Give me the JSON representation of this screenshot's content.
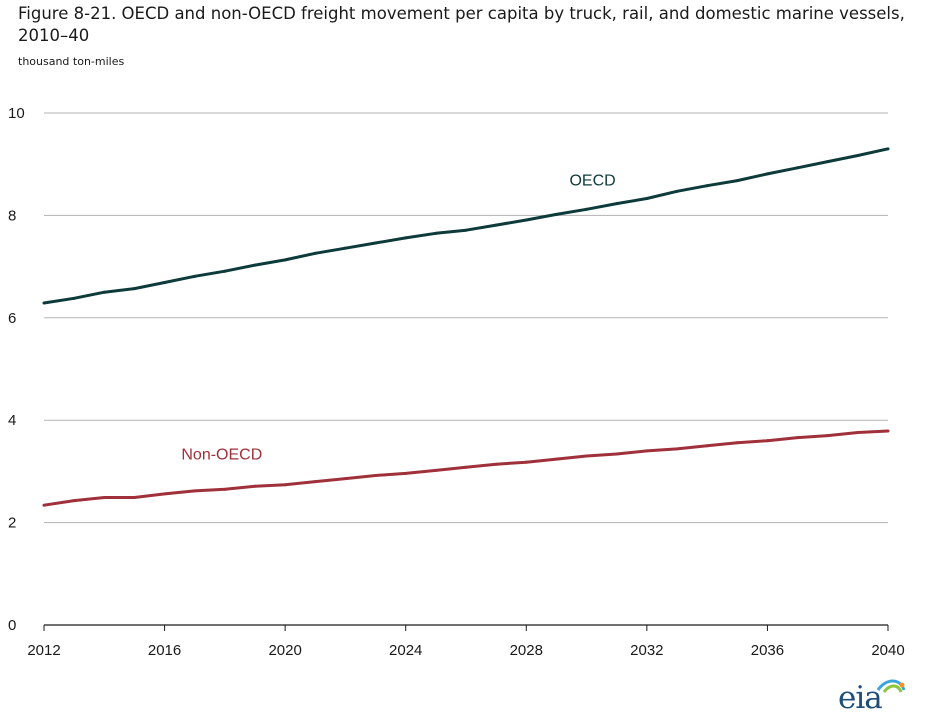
{
  "figure": {
    "title": "Figure 8-21. OECD and non-OECD freight movement per capita by truck, rail, and domestic marine vessels, 2010–40",
    "units": "thousand ton-miles"
  },
  "logo": {
    "text": "eia",
    "icon": "eia-logo"
  },
  "chart_data": {
    "type": "line",
    "title": "",
    "xlabel": "",
    "ylabel": "",
    "x": [
      2012,
      2013,
      2014,
      2015,
      2016,
      2017,
      2018,
      2019,
      2020,
      2021,
      2022,
      2023,
      2024,
      2025,
      2026,
      2027,
      2028,
      2029,
      2030,
      2031,
      2032,
      2033,
      2034,
      2035,
      2036,
      2037,
      2038,
      2039,
      2040
    ],
    "xlim": [
      2012,
      2040
    ],
    "ylim": [
      0,
      10
    ],
    "x_ticks": [
      "2012",
      "2016",
      "2020",
      "2024",
      "2028",
      "2032",
      "2036",
      "2040"
    ],
    "y_ticks": [
      "0",
      "2",
      "4",
      "6",
      "8",
      "10"
    ],
    "grid": "horizontal",
    "series": [
      {
        "name": "OECD",
        "color": "#0d3a3a",
        "values": [
          6.29,
          6.38,
          6.5,
          6.57,
          6.69,
          6.81,
          6.91,
          7.03,
          7.13,
          7.26,
          7.36,
          7.46,
          7.56,
          7.65,
          7.71,
          7.81,
          7.91,
          8.02,
          8.12,
          8.23,
          8.33,
          8.47,
          8.58,
          8.68,
          8.81,
          8.93,
          9.05,
          9.17,
          9.3
        ]
      },
      {
        "name": "Non-OECD",
        "color": "#a0303a",
        "values": [
          2.34,
          2.43,
          2.49,
          2.49,
          2.56,
          2.62,
          2.65,
          2.71,
          2.74,
          2.8,
          2.86,
          2.92,
          2.96,
          3.02,
          3.08,
          3.14,
          3.18,
          3.24,
          3.3,
          3.34,
          3.4,
          3.44,
          3.5,
          3.56,
          3.6,
          3.66,
          3.7,
          3.76,
          3.79
        ]
      }
    ]
  }
}
